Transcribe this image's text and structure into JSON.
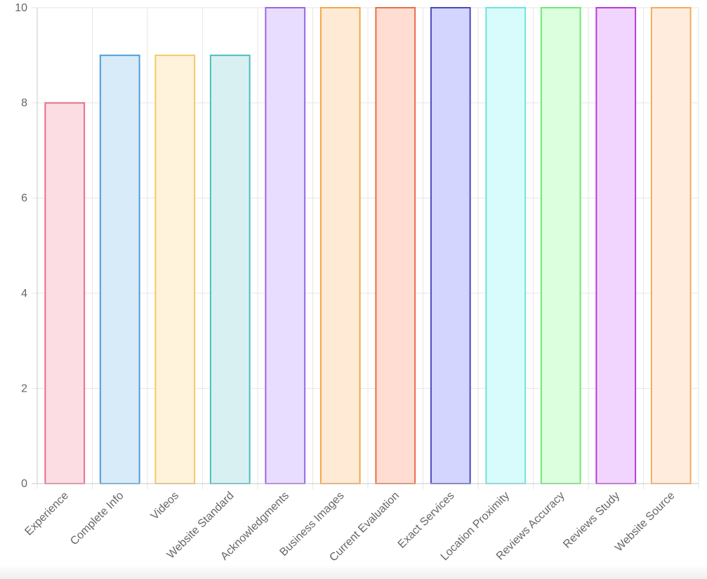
{
  "chart_data": {
    "type": "bar",
    "categories": [
      "Experience",
      "Complete Info",
      "Videos",
      "Website Standard",
      "Acknowledgments",
      "Business Images",
      "Current Evaluation",
      "Exact Services",
      "Location Proximity",
      "Reviews Accuracy",
      "Reviews Study",
      "Website Source"
    ],
    "values": [
      8,
      9,
      9,
      9,
      10,
      10,
      10,
      10,
      10,
      10,
      10,
      10
    ],
    "ylim": [
      0,
      10
    ],
    "yticks": [
      0,
      2,
      4,
      6,
      8,
      10
    ],
    "grid": true,
    "legend": "none",
    "colors": {
      "fills": [
        "#fcdde3",
        "#d7ebf8",
        "#fff3dc",
        "#d9f0f3",
        "#e9ddff",
        "#ffead6",
        "#ffddd2",
        "#d4d5ff",
        "#d8fcfb",
        "#dcffdd",
        "#f2d5ff",
        "#ffecdd"
      ],
      "borders": [
        "#e96e8a",
        "#4f9dd8",
        "#f5c866",
        "#4dbdbd",
        "#9a66e8",
        "#f0a849",
        "#e6704a",
        "#4a48bf",
        "#6de3de",
        "#6ee879",
        "#b23ed9",
        "#f2ad5c"
      ]
    }
  }
}
